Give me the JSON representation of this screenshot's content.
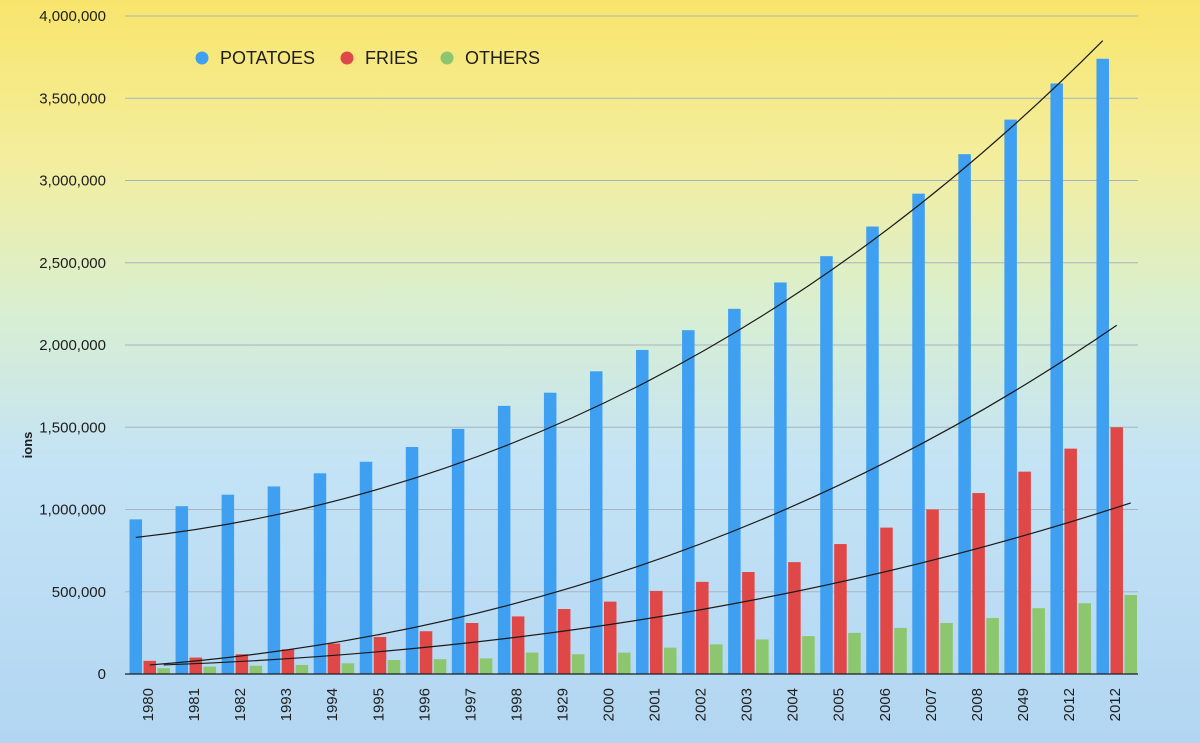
{
  "chart_data": {
    "type": "bar",
    "title": "",
    "xlabel": "",
    "ylabel": "ions",
    "ylim": [
      0,
      4000000
    ],
    "yticks": [
      0,
      500000,
      1000000,
      1500000,
      2000000,
      2500000,
      3000000,
      3500000,
      4000000
    ],
    "ytick_labels": [
      "0",
      "500,000",
      "1,000,000",
      "1,500,000",
      "2,000,000",
      "2,500,000",
      "3,000,000",
      "3,500,000",
      "4,000,000"
    ],
    "grid": true,
    "legend_position": "top-left",
    "categories": [
      "1980",
      "1981",
      "1982",
      "1993",
      "1994",
      "1995",
      "1996",
      "1997",
      "1998",
      "1929",
      "2000",
      "2001",
      "2002",
      "2003",
      "2004",
      "2005",
      "2006",
      "2007",
      "2008",
      "2049",
      "2012",
      "2012"
    ],
    "series": [
      {
        "name": "POTATOES",
        "color": "#3f9ff0",
        "values": [
          940000,
          1020000,
          1090000,
          1140000,
          1220000,
          1290000,
          1380000,
          1490000,
          1630000,
          1710000,
          1840000,
          1970000,
          2090000,
          2220000,
          2380000,
          2540000,
          2720000,
          2920000,
          3160000,
          3370000,
          3590000,
          3740000
        ]
      },
      {
        "name": "FRIES",
        "color": "#e04848",
        "values": [
          80000,
          100000,
          120000,
          150000,
          185000,
          225000,
          260000,
          310000,
          350000,
          395000,
          440000,
          505000,
          560000,
          620000,
          680000,
          790000,
          890000,
          1000000,
          1100000,
          1230000,
          1370000,
          1500000
        ]
      },
      {
        "name": "OTHERS",
        "color": "#8cc66e",
        "values": [
          35000,
          45000,
          50000,
          55000,
          65000,
          85000,
          90000,
          95000,
          130000,
          120000,
          130000,
          160000,
          180000,
          210000,
          230000,
          250000,
          280000,
          310000,
          340000,
          400000,
          430000,
          480000
        ]
      }
    ],
    "trendlines": [
      {
        "series": "POTATOES",
        "type": "polynomial",
        "color": "#1a1a1a",
        "values": [
          830000,
          3850000
        ]
      },
      {
        "series": "FRIES",
        "type": "polynomial",
        "color": "#1a1a1a",
        "values": [
          55000,
          2120000
        ]
      },
      {
        "series": "OTHERS",
        "type": "polynomial",
        "color": "#1a1a1a",
        "values": [
          55000,
          1040000
        ]
      }
    ]
  }
}
